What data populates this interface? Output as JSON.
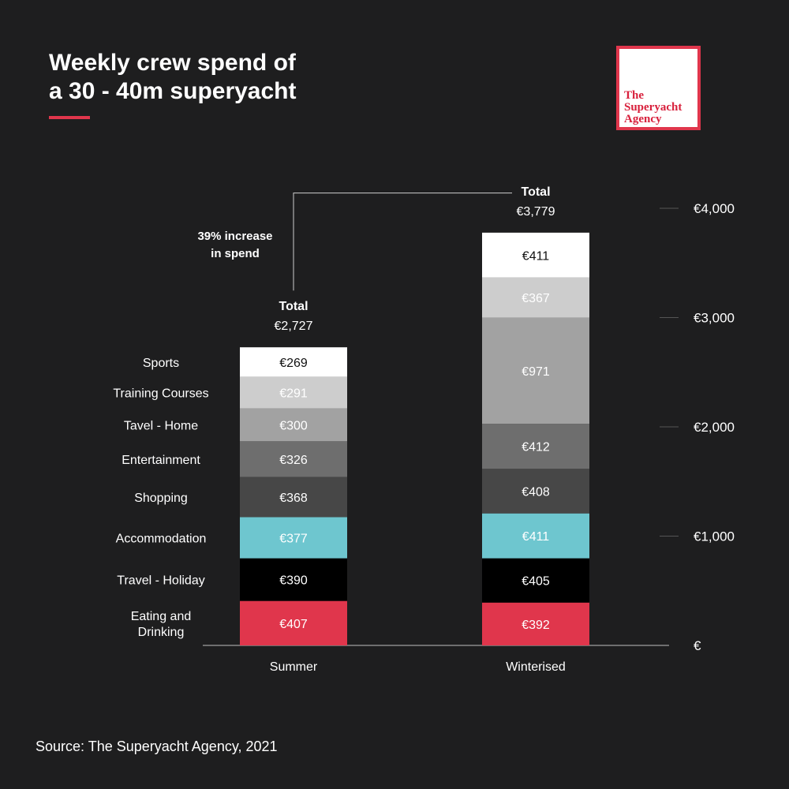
{
  "header": {
    "title_line1": "Weekly crew spend of",
    "title_line2": "a 30 - 40m superyacht"
  },
  "logo": {
    "line1": "The",
    "line2": "Superyacht",
    "line3": "Agency"
  },
  "source": "Source: The Superyacht Agency, 2021",
  "colors": {
    "background": "#1e1e1f",
    "accent_red": "#e0364c",
    "accommodation_teal": "#6ec6cf"
  },
  "chart_data": {
    "type": "bar",
    "stacked": true,
    "categories": [
      "Summer",
      "Winterised"
    ],
    "series": [
      {
        "name": "Eating and Drinking",
        "label_lines": [
          "Eating and",
          "Drinking"
        ],
        "values": [
          407,
          392
        ],
        "value_labels": [
          "€407",
          "€392"
        ],
        "color": "#e0364c",
        "text_color": "#ffffff"
      },
      {
        "name": "Travel - Holiday",
        "label_lines": [
          "Travel - Holiday"
        ],
        "values": [
          390,
          405
        ],
        "value_labels": [
          "€390",
          "€405"
        ],
        "color": "#000000",
        "text_color": "#ffffff"
      },
      {
        "name": "Accommodation",
        "label_lines": [
          "Accommodation"
        ],
        "values": [
          377,
          411
        ],
        "value_labels": [
          "€377",
          "€411"
        ],
        "color": "#6ec6cf",
        "text_color": "#ffffff"
      },
      {
        "name": "Shopping",
        "label_lines": [
          "Shopping"
        ],
        "values": [
          368,
          408
        ],
        "value_labels": [
          "€368",
          "€408"
        ],
        "color": "#474747",
        "text_color": "#ffffff"
      },
      {
        "name": "Entertainment",
        "label_lines": [
          "Entertainment"
        ],
        "values": [
          326,
          412
        ],
        "value_labels": [
          "€326",
          "€412"
        ],
        "color": "#6e6e6e",
        "text_color": "#ffffff"
      },
      {
        "name": "Tavel - Home",
        "label_lines": [
          "Tavel - Home"
        ],
        "values": [
          300,
          971
        ],
        "value_labels": [
          "€300",
          "€971"
        ],
        "color": "#a2a2a2",
        "text_color": "#ffffff"
      },
      {
        "name": "Training Courses",
        "label_lines": [
          "Training Courses"
        ],
        "values": [
          291,
          367
        ],
        "value_labels": [
          "€291",
          "€367"
        ],
        "color": "#cdcdcd",
        "text_color": "#ffffff"
      },
      {
        "name": "Sports",
        "label_lines": [
          "Sports"
        ],
        "values": [
          269,
          411
        ],
        "value_labels": [
          "€269",
          "€411"
        ],
        "color": "#ffffff",
        "text_color": "#111111"
      }
    ],
    "totals": [
      {
        "heading": "Total",
        "value": 2727,
        "label": "€2,727"
      },
      {
        "heading": "Total",
        "value": 3779,
        "label": "€3,779"
      }
    ],
    "annotation": {
      "lines": [
        "39% increase",
        "in spend"
      ]
    },
    "y_ticks": [
      {
        "value": 0,
        "label": "€"
      },
      {
        "value": 1000,
        "label": "€1,000"
      },
      {
        "value": 2000,
        "label": "€2,000"
      },
      {
        "value": 3000,
        "label": "€3,000"
      },
      {
        "value": 4000,
        "label": "€4,000"
      }
    ],
    "ylim": [
      0,
      4000
    ],
    "xlabel": "",
    "ylabel": ""
  }
}
